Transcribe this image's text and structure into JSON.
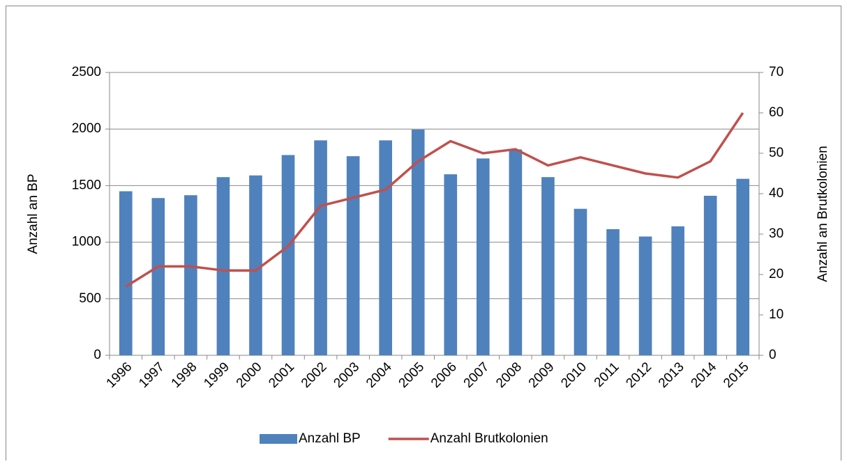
{
  "chart_data": {
    "type": "bar-line",
    "categories": [
      "1996",
      "1997",
      "1998",
      "1999",
      "2000",
      "2001",
      "2002",
      "2003",
      "2004",
      "2005",
      "2006",
      "2007",
      "2008",
      "2009",
      "2010",
      "2011",
      "2012",
      "2013",
      "2014",
      "2015"
    ],
    "series": [
      {
        "name": "Anzahl BP",
        "type": "bar",
        "color": "#4f81bd",
        "values": [
          1450,
          1390,
          1415,
          1575,
          1590,
          1770,
          1900,
          1760,
          1900,
          1995,
          1600,
          1740,
          1820,
          1575,
          1295,
          1115,
          1050,
          1140,
          1410,
          1560
        ]
      },
      {
        "name": "Anzahl Brutkolonien",
        "type": "line",
        "axis": "y2",
        "color": "#c0504d",
        "values": [
          17,
          22,
          22,
          21,
          21,
          27,
          37,
          39,
          41,
          48,
          53,
          50,
          51,
          47,
          49,
          47,
          45,
          44,
          48,
          60
        ]
      }
    ],
    "ylabel": "Anzahl an BP",
    "y2label": "Anzahl an Brutkolonien",
    "ylim": [
      0,
      2500
    ],
    "yticks": [
      0,
      500,
      1000,
      1500,
      2000,
      2500
    ],
    "y2lim": [
      0,
      70
    ],
    "y2ticks": [
      0,
      10,
      20,
      30,
      40,
      50,
      60,
      70
    ],
    "grid": true,
    "legend": "bottom"
  }
}
